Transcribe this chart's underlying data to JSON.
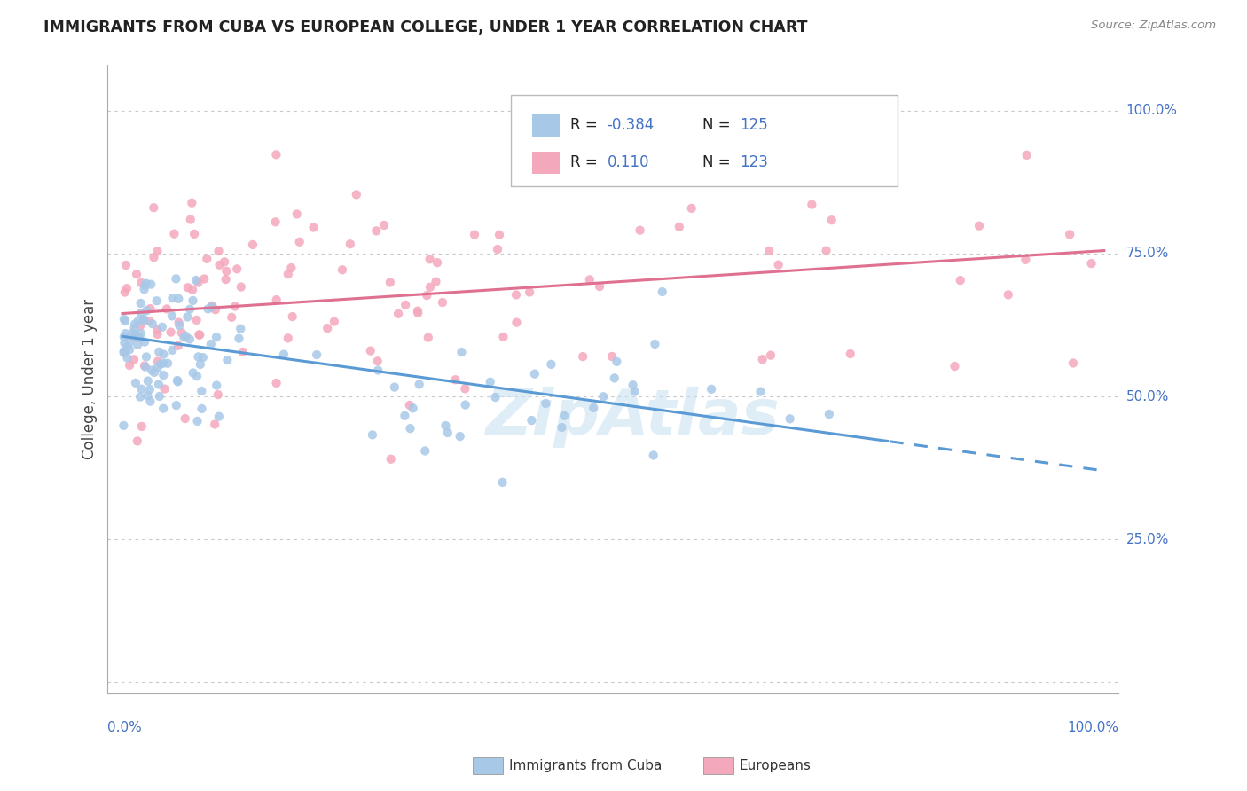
{
  "title": "IMMIGRANTS FROM CUBA VS EUROPEAN COLLEGE, UNDER 1 YEAR CORRELATION CHART",
  "source": "Source: ZipAtlas.com",
  "ylabel": "College, Under 1 year",
  "legend_r_cuba": "-0.384",
  "legend_n_cuba": "125",
  "legend_r_euro": "0.110",
  "legend_n_euro": "123",
  "legend_label_cuba": "Immigrants from Cuba",
  "legend_label_euro": "Europeans",
  "color_cuba": "#a8c8e8",
  "color_euro": "#f4a8bc",
  "color_trendline_cuba": "#5b9bd5",
  "color_trendline_euro": "#e07090",
  "background_color": "#ffffff",
  "trendline_cuba_x0": 0.0,
  "trendline_cuba_y0": 0.605,
  "trendline_cuba_x1": 1.0,
  "trendline_cuba_y1": 0.37,
  "trendline_cuba_solid_end": 0.78,
  "trendline_euro_x0": 0.0,
  "trendline_euro_y0": 0.645,
  "trendline_euro_x1": 1.0,
  "trendline_euro_y1": 0.755,
  "xlim": [
    -0.015,
    1.015
  ],
  "ylim": [
    -0.02,
    1.08
  ],
  "ytick_vals": [
    0.0,
    0.25,
    0.5,
    0.75,
    1.0
  ],
  "ytick_labels_right": [
    "",
    "25.0%",
    "50.0%",
    "75.0%",
    "100.0%"
  ],
  "watermark_text": "ZipAtlas",
  "watermark_color": "#c5dff2",
  "watermark_alpha": 0.55,
  "watermark_fontsize": 52
}
